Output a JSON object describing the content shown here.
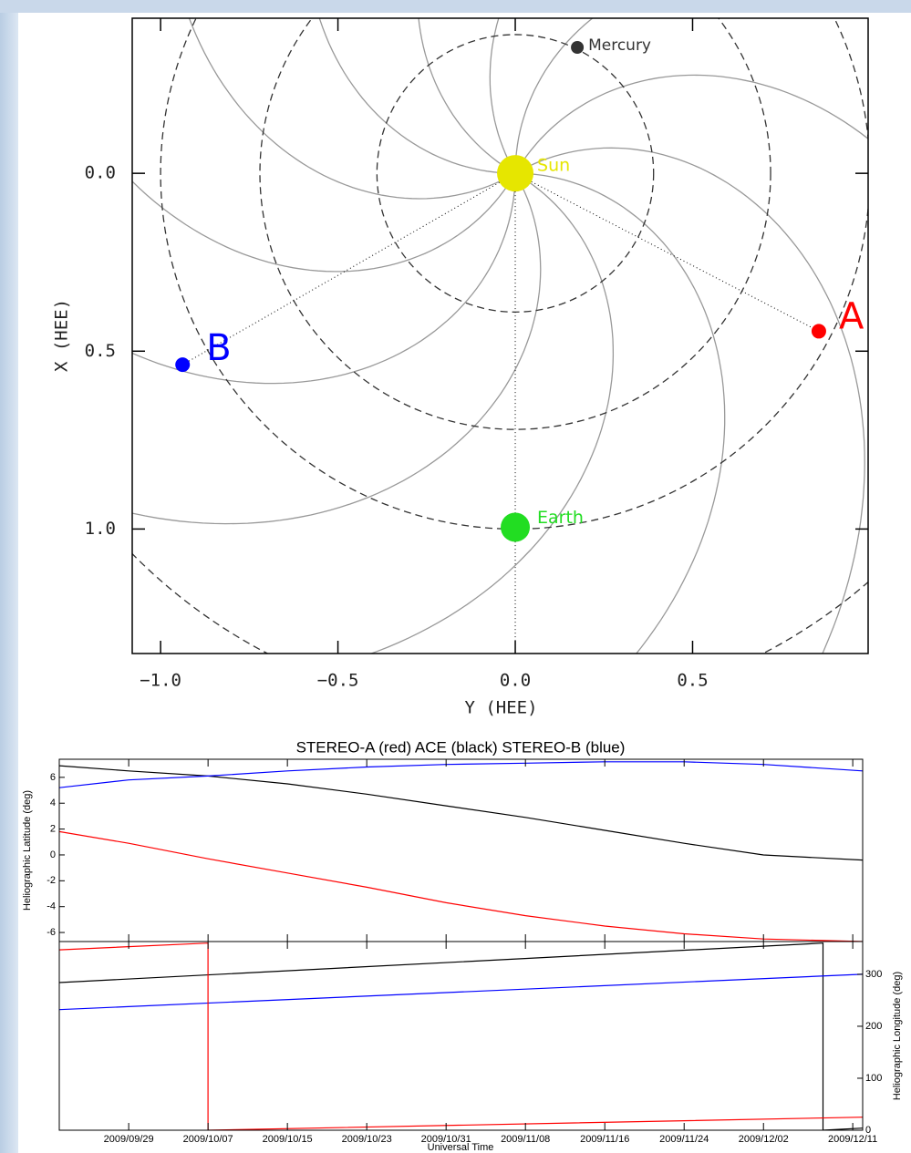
{
  "chart_data": [
    {
      "type": "scatter",
      "xlabel": "Y (HEE)",
      "ylabel": "X (HEE)",
      "xlim": [
        -1.08,
        0.995
      ],
      "ylim": [
        1.35,
        -0.436
      ],
      "xticks": [
        {
          "value": -1,
          "label": "−1.0"
        },
        {
          "value": -0.5,
          "label": "−0.5"
        },
        {
          "value": 0,
          "label": "0.0"
        },
        {
          "value": 0.5,
          "label": "0.5"
        }
      ],
      "yticks": [
        {
          "value": 0,
          "label": "0.0"
        },
        {
          "value": 0.5,
          "label": "0.5"
        },
        {
          "value": 1,
          "label": "1.0"
        }
      ],
      "points": [
        {
          "label": "Mercury",
          "x": 0.175,
          "y": -0.354,
          "color": "#333333"
        },
        {
          "label": "Sun",
          "x": 0,
          "y": 0,
          "color": "#e6e600"
        },
        {
          "label": "Earth",
          "x": 0,
          "y": 0.995,
          "color": "#22dd22"
        },
        {
          "label": "A",
          "x": 0.856,
          "y": 0.444,
          "color": "#ff0000"
        },
        {
          "label": "B",
          "x": -0.938,
          "y": 0.538,
          "color": "#0000ff"
        }
      ]
    },
    {
      "type": "line",
      "title": "STEREO-A (red)  ACE (black)   STEREO-B (blue)",
      "xlabel": "Universal Time",
      "xlim": [
        "2009/09/22",
        "2009/12/12"
      ],
      "xticks": [
        "2009/09/29",
        "2009/10/07",
        "2009/10/15",
        "2009/10/23",
        "2009/10/31",
        "2009/11/08",
        "2009/11/16",
        "2009/11/24",
        "2009/12/02",
        "2009/12/11"
      ],
      "panels": [
        {
          "ylabel": "Heliographic Latitude (deg)",
          "ylim": [
            -6.7,
            7.4
          ],
          "yticks": [
            -6,
            -4,
            -2,
            0,
            2,
            4,
            6
          ],
          "series": [
            {
              "color": "#000000",
              "x": [
                "2009/09/22",
                "2009/09/29",
                "2009/10/07",
                "2009/10/15",
                "2009/10/23",
                "2009/10/31",
                "2009/11/08",
                "2009/11/16",
                "2009/11/24",
                "2009/12/02",
                "2009/12/12"
              ],
              "values": [
                6.9,
                6.5,
                6.1,
                5.5,
                4.7,
                3.8,
                2.9,
                1.9,
                0.9,
                0.0,
                -0.4
              ]
            },
            {
              "color": "#0000ff",
              "x": [
                "2009/09/22",
                "2009/09/29",
                "2009/10/07",
                "2009/10/15",
                "2009/10/23",
                "2009/10/31",
                "2009/11/08",
                "2009/11/16",
                "2009/11/24",
                "2009/12/02",
                "2009/12/12"
              ],
              "values": [
                5.2,
                5.8,
                6.1,
                6.5,
                6.8,
                7.0,
                7.1,
                7.2,
                7.2,
                7.0,
                6.5
              ]
            },
            {
              "color": "#ff0000",
              "x": [
                "2009/09/22",
                "2009/09/29",
                "2009/10/07",
                "2009/10/15",
                "2009/10/23",
                "2009/10/31",
                "2009/11/08",
                "2009/11/16",
                "2009/11/24",
                "2009/12/02",
                "2009/12/12"
              ],
              "values": [
                1.8,
                0.9,
                -0.3,
                -1.4,
                -2.5,
                -3.7,
                -4.7,
                -5.5,
                -6.1,
                -6.5,
                -6.7
              ]
            }
          ]
        },
        {
          "ylabel": "Heliographic Longitude (deg)",
          "ylim": [
            0,
            363
          ],
          "yticks": [
            0,
            100,
            200,
            300
          ],
          "series": [
            {
              "color": "#000000",
              "x": [
                "2009/09/22",
                "2009/12/08",
                "2009/12/08",
                "2009/12/12"
              ],
              "values": [
                284,
                360,
                0,
                4
              ]
            },
            {
              "color": "#0000ff",
              "x": [
                "2009/09/22",
                "2009/12/12"
              ],
              "values": [
                232,
                300
              ]
            },
            {
              "color": "#ff0000",
              "x": [
                "2009/09/22",
                "2009/10/07",
                "2009/10/07",
                "2009/12/12"
              ],
              "values": [
                347,
                360,
                0,
                25
              ]
            }
          ]
        }
      ]
    }
  ]
}
